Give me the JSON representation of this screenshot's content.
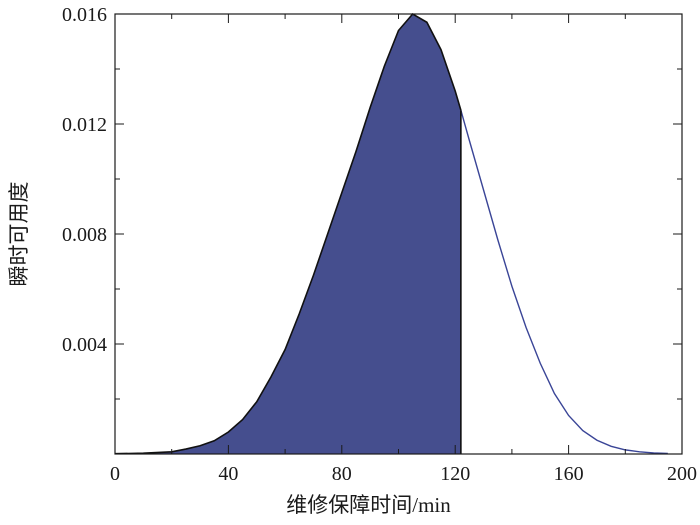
{
  "chart_data": {
    "type": "area",
    "xlabel": "维修保障时间/min",
    "ylabel": "瞬时可用度",
    "xlim": [
      0,
      200
    ],
    "ylim": [
      0,
      0.016
    ],
    "x_ticks": [
      0,
      40,
      80,
      120,
      160,
      200
    ],
    "x_tick_labels": [
      "0",
      "40",
      "80",
      "120",
      "160",
      "200"
    ],
    "y_ticks": [
      0.004,
      0.008,
      0.012,
      0.016
    ],
    "y_tick_labels": [
      "0.004",
      "0.008",
      "0.012",
      "0.016"
    ],
    "grid": false,
    "shaded_until_x": 122,
    "colors": {
      "fill": "#454e8e",
      "curve_shaded": "#111111",
      "curve_unshaded": "#3a4597",
      "axis": "#1a1a1a"
    },
    "series": [
      {
        "x": [
          0,
          10,
          20,
          25,
          30,
          35,
          40,
          45,
          50,
          55,
          60,
          65,
          70,
          75,
          80,
          85,
          90,
          95,
          100,
          105,
          110,
          115,
          120,
          122,
          125,
          130,
          135,
          140,
          145,
          150,
          155,
          160,
          165,
          170,
          175,
          180,
          185,
          190,
          195
        ],
        "y": [
          1e-05,
          3e-05,
          8e-05,
          0.00018,
          0.0003,
          0.00048,
          0.0008,
          0.00125,
          0.0019,
          0.0028,
          0.0038,
          0.0051,
          0.0065,
          0.008,
          0.0095,
          0.011,
          0.0126,
          0.0141,
          0.0154,
          0.016,
          0.0157,
          0.0147,
          0.0132,
          0.0125,
          0.0114,
          0.0096,
          0.0078,
          0.0061,
          0.0046,
          0.0033,
          0.0022,
          0.0014,
          0.00085,
          0.0005,
          0.00028,
          0.00015,
          8e-05,
          4e-05,
          2e-05
        ]
      }
    ]
  }
}
